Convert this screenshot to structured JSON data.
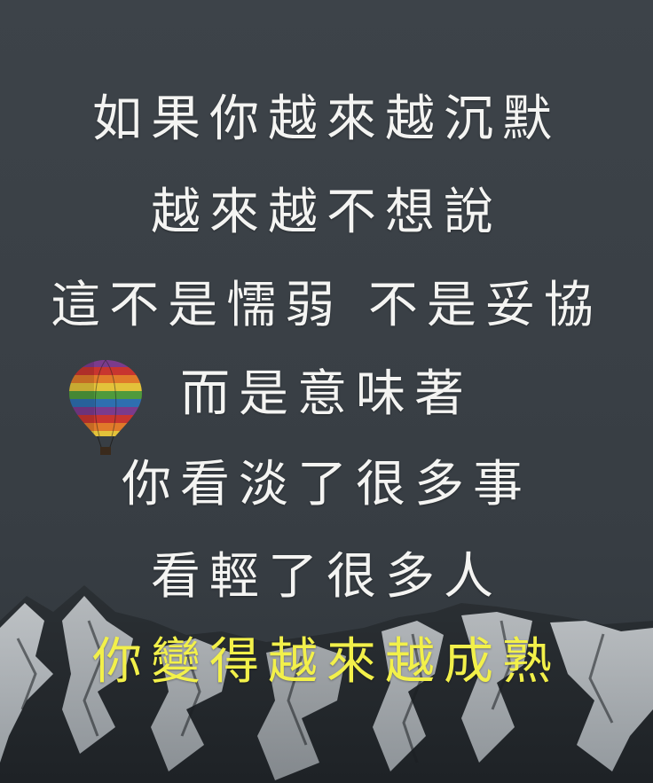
{
  "image": {
    "lines": [
      "如果你越來越沉默",
      "越來越不想說",
      "這不是懦弱 不是妥協",
      "而是意味著",
      "你看淡了很多事",
      "看輕了很多人",
      "你變得越來越成熟"
    ],
    "colors": {
      "text": "#f4f4f2",
      "highlight_text": "#f2f04a",
      "sky": "#3b4147"
    },
    "icons": {
      "balloon": "hot-air-balloon-icon"
    }
  }
}
